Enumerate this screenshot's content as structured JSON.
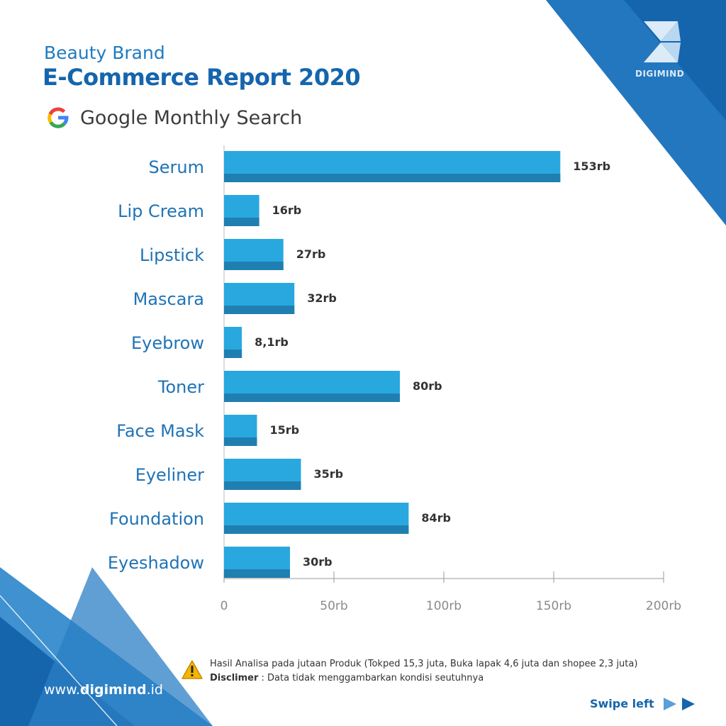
{
  "header": {
    "subtitle": "Beauty Brand",
    "title": "E-Commerce Report 2020",
    "search_title": "Google Monthly Search"
  },
  "brand": {
    "name": "DIGIMIND"
  },
  "colors": {
    "bar": "#29a8e0",
    "bar_shadow": "#1f7fb0",
    "label": "#1f73b5",
    "corner_dark": "#1565ad",
    "corner_light": "#3f91d0"
  },
  "chart_data": {
    "type": "bar",
    "orientation": "horizontal",
    "title": "Google Monthly Search",
    "categories": [
      "Serum",
      "Lip Cream",
      "Lipstick",
      "Mascara",
      "Eyebrow",
      "Toner",
      "Face Mask",
      "Eyeliner",
      "Foundation",
      "Eyeshadow"
    ],
    "values": [
      153,
      16,
      27,
      32,
      8.1,
      80,
      15,
      35,
      84,
      30
    ],
    "value_labels": [
      "153rb",
      "16rb",
      "27rb",
      "32rb",
      "8,1rb",
      "80rb",
      "15rb",
      "35rb",
      "84rb",
      "30rb"
    ],
    "xlim": [
      0,
      200
    ],
    "x_ticks": [
      0,
      50,
      100,
      150,
      200
    ],
    "x_tick_labels": [
      "0",
      "50rb",
      "100rb",
      "150rb",
      "200rb"
    ],
    "grid": false,
    "legend": "none"
  },
  "notes": {
    "analysis": "Hasil Analisa pada jutaan Produk (Tokped 15,3 juta,  Buka lapak 4,6 juta dan shopee 2,3 juta)",
    "disclaimer_label": "Disclimer",
    "disclaimer_text": " : Data tidak menggambarkan kondisi seutuhnya"
  },
  "footer": {
    "website_prefix": "www.",
    "website_bold": "digimind",
    "website_suffix": ".id",
    "swipe": "Swipe left"
  }
}
